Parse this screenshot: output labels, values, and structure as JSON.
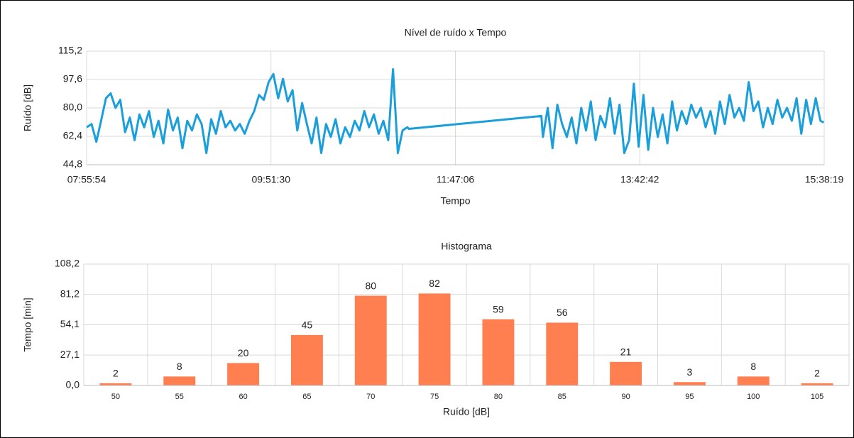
{
  "chart_data": [
    {
      "type": "line",
      "title": "Nível de ruído x Tempo",
      "x_label": "Tempo",
      "y_label": "Ruído [dB]",
      "color": "#1a9fdb",
      "grid": true,
      "xlim": [
        "07:55:54",
        "15:38:19"
      ],
      "xticks": [
        "07:55:54",
        "09:51:30",
        "11:47:06",
        "13:42:42",
        "15:38:19"
      ],
      "ylim": [
        44.8,
        115.2
      ],
      "yticks": [
        {
          "value": 44.8,
          "label": "44,8"
        },
        {
          "value": 62.4,
          "label": "62,4"
        },
        {
          "value": 80.0,
          "label": "80,0"
        },
        {
          "value": 97.6,
          "label": "97,6"
        },
        {
          "value": 115.2,
          "label": "115,2"
        }
      ],
      "x": [
        "07:56:00",
        "07:59:00",
        "08:02:00",
        "08:05:00",
        "08:08:00",
        "08:11:00",
        "08:14:00",
        "08:17:00",
        "08:20:00",
        "08:23:00",
        "08:26:00",
        "08:29:00",
        "08:32:00",
        "08:35:00",
        "08:38:00",
        "08:41:00",
        "08:44:00",
        "08:47:00",
        "08:50:00",
        "08:53:00",
        "08:56:00",
        "08:59:00",
        "09:02:00",
        "09:05:00",
        "09:08:00",
        "09:11:00",
        "09:14:00",
        "09:17:00",
        "09:20:00",
        "09:23:00",
        "09:26:00",
        "09:29:00",
        "09:32:00",
        "09:35:00",
        "09:38:00",
        "09:41:00",
        "09:44:00",
        "09:47:00",
        "09:50:00",
        "09:53:00",
        "09:56:00",
        "09:59:00",
        "10:02:00",
        "10:05:00",
        "10:08:00",
        "10:11:00",
        "10:14:00",
        "10:17:00",
        "10:20:00",
        "10:23:00",
        "10:26:00",
        "10:29:00",
        "10:32:00",
        "10:35:00",
        "10:38:00",
        "10:41:00",
        "10:44:00",
        "10:47:00",
        "10:50:00",
        "10:53:00",
        "10:56:00",
        "10:59:00",
        "11:02:00",
        "11:05:00",
        "11:08:00",
        "11:11:00",
        "11:14:00",
        "11:17:00",
        "11:18:00",
        "12:41:00",
        "12:42:00",
        "12:45:00",
        "12:48:00",
        "12:51:00",
        "12:54:00",
        "12:57:00",
        "13:00:00",
        "13:03:00",
        "13:06:00",
        "13:09:00",
        "13:12:00",
        "13:15:00",
        "13:18:00",
        "13:21:00",
        "13:24:00",
        "13:27:00",
        "13:30:00",
        "13:33:00",
        "13:36:00",
        "13:39:00",
        "13:42:00",
        "13:45:00",
        "13:48:00",
        "13:51:00",
        "13:54:00",
        "13:57:00",
        "14:00:00",
        "14:03:00",
        "14:06:00",
        "14:09:00",
        "14:12:00",
        "14:15:00",
        "14:18:00",
        "14:21:00",
        "14:24:00",
        "14:27:00",
        "14:30:00",
        "14:33:00",
        "14:36:00",
        "14:39:00",
        "14:42:00",
        "14:45:00",
        "14:48:00",
        "14:51:00",
        "14:54:00",
        "14:57:00",
        "15:00:00",
        "15:03:00",
        "15:06:00",
        "15:09:00",
        "15:12:00",
        "15:15:00",
        "15:18:00",
        "15:21:00",
        "15:24:00",
        "15:27:00",
        "15:30:00",
        "15:33:00",
        "15:36:00",
        "15:38:00"
      ],
      "values": [
        68,
        70,
        59,
        72,
        86,
        89,
        80,
        85,
        65,
        74,
        60,
        76,
        68,
        78,
        62,
        72,
        58,
        79,
        66,
        74,
        55,
        72,
        66,
        76,
        70,
        52,
        73,
        64,
        78,
        68,
        72,
        66,
        70,
        64,
        72,
        78,
        88,
        85,
        96,
        101,
        86,
        98,
        84,
        91,
        66,
        83,
        70,
        58,
        74,
        52,
        70,
        62,
        73,
        58,
        68,
        62,
        72,
        66,
        78,
        68,
        76,
        64,
        72,
        60,
        104,
        52,
        66,
        68,
        67,
        75,
        62,
        80,
        55,
        82,
        70,
        62,
        74,
        58,
        80,
        66,
        84,
        60,
        75,
        68,
        86,
        64,
        82,
        52,
        60,
        95,
        56,
        88,
        54,
        80,
        62,
        76,
        58,
        84,
        66,
        78,
        70,
        82,
        74,
        80,
        68,
        78,
        64,
        84,
        70,
        88,
        74,
        80,
        72,
        96,
        78,
        84,
        68,
        80,
        70,
        85,
        74,
        80,
        72,
        86,
        64,
        85,
        70,
        86,
        72,
        71
      ]
    },
    {
      "type": "bar",
      "title": "Histograma",
      "x_label": "Ruído [dB]",
      "y_label": "Tempo [min]",
      "color": "#ff7f50",
      "grid": true,
      "categories": [
        "50",
        "55",
        "60",
        "65",
        "70",
        "75",
        "80",
        "85",
        "90",
        "95",
        "100",
        "105"
      ],
      "values": [
        2,
        8,
        20,
        45,
        80,
        82,
        59,
        56,
        21,
        3,
        8,
        2
      ],
      "ylim": [
        0,
        108.2
      ],
      "yticks": [
        {
          "value": 0,
          "label": "0,0"
        },
        {
          "value": 27.1,
          "label": "27,1"
        },
        {
          "value": 54.1,
          "label": "54,1"
        },
        {
          "value": 81.2,
          "label": "81,2"
        },
        {
          "value": 108.2,
          "label": "108,2"
        }
      ]
    }
  ]
}
